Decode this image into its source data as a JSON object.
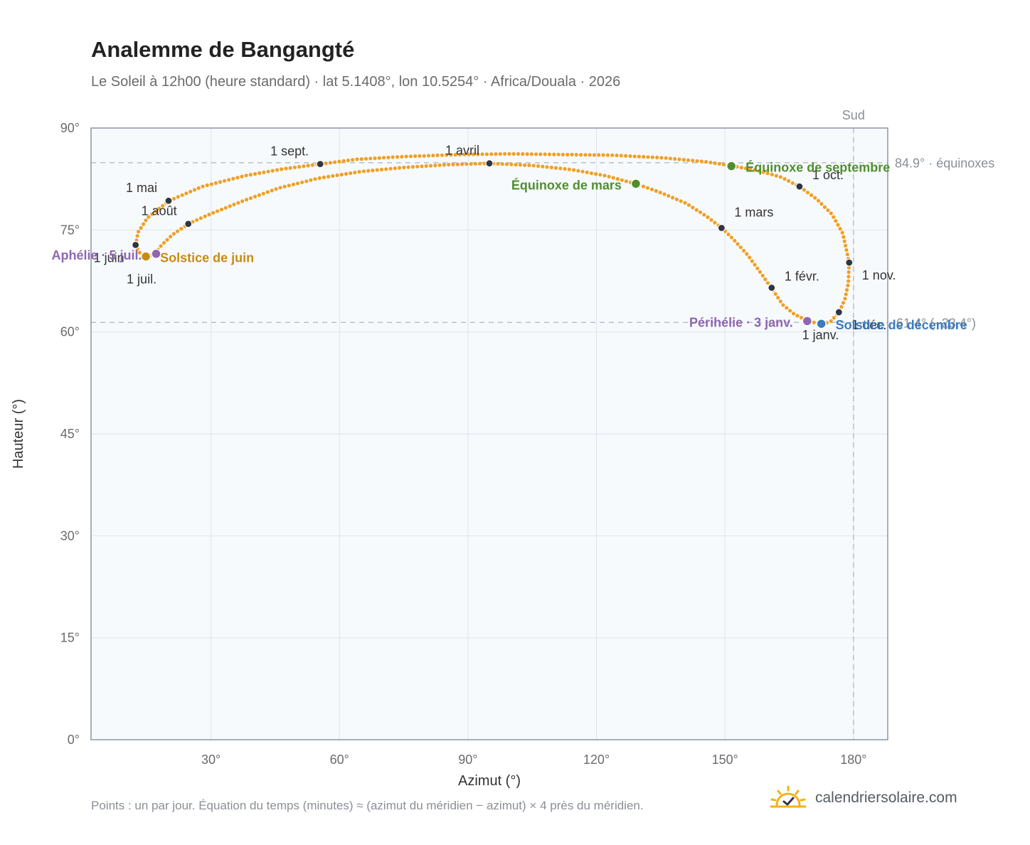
{
  "title": "Analemme de Bangangté",
  "subtitle": "Le Soleil à 12h00 (heure standard) · lat 5.1408°, lon 10.5254° · Africa/Douala · 2026",
  "footnote": "Points : un par jour. Équation du temps (minutes) ≈ (azimut du méridien − azimut) × 4 près du méridien.",
  "brand": {
    "name": "calendriersolaire.com",
    "icon": "sun-check-icon"
  },
  "colors": {
    "curve": "#f0a024",
    "month_marker": "#2f3640",
    "equinox": "#4f8f2f",
    "june_solstice": "#c98a12",
    "december_solstice": "#3b7bbf",
    "apsis": "#8e67b0",
    "plot_bg": "#f7fafd",
    "grid": "#e2e7ee",
    "frame": "#8c96a3",
    "reference": "#b9c0c8"
  },
  "chart_data": {
    "type": "scatter",
    "title": "Analemme de Bangangté",
    "xlabel": "Azimut (°)",
    "ylabel": "Hauteur (°)",
    "xlim": [
      2,
      188
    ],
    "ylim": [
      0,
      90
    ],
    "x_ticks": [
      30,
      60,
      90,
      120,
      150,
      180
    ],
    "y_ticks": [
      0,
      15,
      30,
      45,
      60,
      75,
      90
    ],
    "tick_suffix": "°",
    "grid": true,
    "south_line": {
      "azimuth": 180,
      "label": "Sud"
    },
    "equinox_line": {
      "altitude": 84.9,
      "label": "84.9° · équinoxes"
    },
    "solstice_line": {
      "altitude": 61.4,
      "label": "61.4° (−23.4°)"
    },
    "analemma_path": [
      [
        172.8,
        61.1
      ],
      [
        169.4,
        61.6
      ],
      [
        166.2,
        62.6
      ],
      [
        163.5,
        64.0
      ],
      [
        160.8,
        66.5
      ],
      [
        158.0,
        69.0
      ],
      [
        155.2,
        71.4
      ],
      [
        152.0,
        73.6
      ],
      [
        149.3,
        75.3
      ],
      [
        145.5,
        77.1
      ],
      [
        141.0,
        78.9
      ],
      [
        135.0,
        80.5
      ],
      [
        129.2,
        81.8
      ],
      [
        122.0,
        83.0
      ],
      [
        114.0,
        83.9
      ],
      [
        105.0,
        84.5
      ],
      [
        95.0,
        84.8
      ],
      [
        85.0,
        84.6
      ],
      [
        75.0,
        84.2
      ],
      [
        65.0,
        83.6
      ],
      [
        55.0,
        82.6
      ],
      [
        46.0,
        81.2
      ],
      [
        38.0,
        79.4
      ],
      [
        30.0,
        77.4
      ],
      [
        25.0,
        76.0
      ],
      [
        21.0,
        74.3
      ],
      [
        18.5,
        72.8
      ],
      [
        17.0,
        71.6
      ],
      [
        15.2,
        71.0
      ],
      [
        13.4,
        71.6
      ],
      [
        12.4,
        72.8
      ],
      [
        13.0,
        74.7
      ],
      [
        15.2,
        76.8
      ],
      [
        20.2,
        79.3
      ],
      [
        28.0,
        81.4
      ],
      [
        38.0,
        83.0
      ],
      [
        47.0,
        84.0
      ],
      [
        55.5,
        84.7
      ],
      [
        64.0,
        85.4
      ],
      [
        75.0,
        85.8
      ],
      [
        88.0,
        86.1
      ],
      [
        100.0,
        86.2
      ],
      [
        112.0,
        86.1
      ],
      [
        124.0,
        86.0
      ],
      [
        136.0,
        85.6
      ],
      [
        146.0,
        85.0
      ],
      [
        152.0,
        84.4
      ],
      [
        158.0,
        83.7
      ],
      [
        163.0,
        82.8
      ],
      [
        167.4,
        81.4
      ],
      [
        171.5,
        79.5
      ],
      [
        175.0,
        77.3
      ],
      [
        177.5,
        74.5
      ],
      [
        179.0,
        70.2
      ],
      [
        178.8,
        67.2
      ],
      [
        178.0,
        64.8
      ],
      [
        176.6,
        62.9
      ],
      [
        174.8,
        61.6
      ],
      [
        172.8,
        61.1
      ]
    ],
    "month_markers": [
      {
        "label": "1 janv.",
        "az": 172.3,
        "alt": 61.2
      },
      {
        "label": "1 févr.",
        "az": 160.9,
        "alt": 66.5
      },
      {
        "label": "1 mars",
        "az": 149.2,
        "alt": 75.3
      },
      {
        "label": "1 avril",
        "az": 95.0,
        "alt": 84.8
      },
      {
        "label": "1 mai",
        "az": 20.1,
        "alt": 79.3
      },
      {
        "label": "1 juin",
        "az": 12.4,
        "alt": 72.8
      },
      {
        "label": "1 juil.",
        "az": 14.8,
        "alt": 71.1
      },
      {
        "label": "1 août",
        "az": 24.7,
        "alt": 75.9
      },
      {
        "label": "1 sept.",
        "az": 55.5,
        "alt": 84.7
      },
      {
        "label": "1 oct.",
        "az": 167.4,
        "alt": 81.4
      },
      {
        "label": "1 nov.",
        "az": 179.0,
        "alt": 70.2
      },
      {
        "label": "1 déc.",
        "az": 176.6,
        "alt": 62.9
      }
    ],
    "events": [
      {
        "label": "Équinoxe de mars",
        "az": 129.2,
        "alt": 81.8,
        "color": "#4f8f2f"
      },
      {
        "label": "Équinoxe de septembre",
        "az": 151.5,
        "alt": 84.4,
        "color": "#4f8f2f"
      },
      {
        "label": "Solstice de juin",
        "az": 14.8,
        "alt": 71.1,
        "color": "#c98a12"
      },
      {
        "label": "Solstice de décembre",
        "az": 172.5,
        "alt": 61.2,
        "color": "#3b7bbf"
      },
      {
        "label": "Aphélie · 5 juil.",
        "az": 17.2,
        "alt": 71.5,
        "color": "#8e67b0"
      },
      {
        "label": "Périhélie · 3 janv.",
        "az": 169.2,
        "alt": 61.6,
        "color": "#8e67b0"
      }
    ]
  }
}
